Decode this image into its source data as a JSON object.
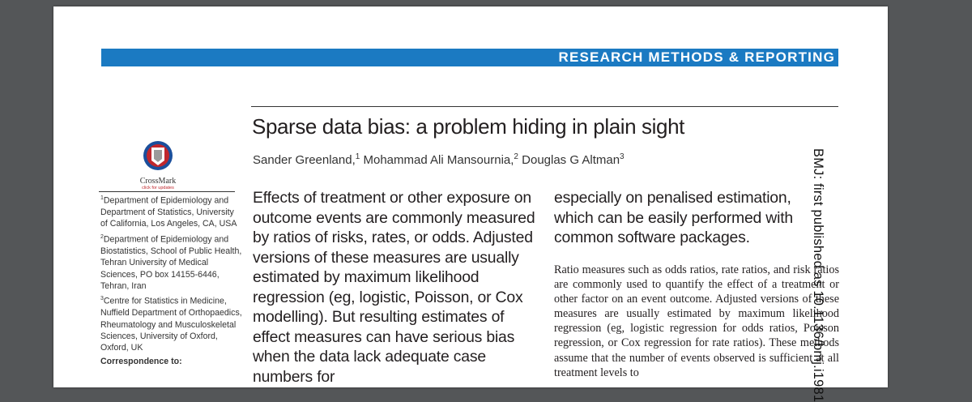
{
  "section_banner": "RESEARCH METHODS & REPORTING",
  "title": "Sparse data bias: a problem hiding in plain sight",
  "authors": [
    {
      "name": "Sander Greenland,",
      "sup": "1"
    },
    {
      "name": " Mohammad Ali Mansournia,",
      "sup": "2"
    },
    {
      "name": " Douglas G Altman",
      "sup": "3"
    }
  ],
  "crossmark": {
    "label": "CrossMark",
    "sub": "click for updates",
    "colors": {
      "red": "#c0272d",
      "blue": "#1b4f9c",
      "grey": "#9a9a9a"
    }
  },
  "affiliations": [
    {
      "sup": "1",
      "text": "Department of Epidemiology and Department of Statistics, University of California, Los Angeles, CA, USA"
    },
    {
      "sup": "2",
      "text": "Department of Epidemiology and Biostatistics, School of Public Health, Tehran University of Medical Sciences, PO box 14155-6446, Tehran, Iran"
    },
    {
      "sup": "3",
      "text": "Centre for Statistics in Medicine, Nuffield Department of Orthopaedics, Rheumatology and Musculoskeletal Sciences, University of Oxford, Oxford, UK"
    }
  ],
  "correspondence": "Correspondence to:",
  "abstract_left": "Effects of treatment or other exposure on outcome events are commonly measured by ratios of risks, rates, or odds. Adjusted versions of these measures are usually estimated by maximum likelihood regression (eg, logistic, Poisson, or Cox modelling). But resulting estimates of effect measures can have serious bias when the data lack adequate case numbers for",
  "abstract_right": "especially on penalised estimation, which can be easily performed with common software packages.",
  "body_text": "Ratio measures such as odds ratios, rate ratios, and risk ratios are commonly used to quantify the effect of a treatment or other factor on an event outcome. Adjusted versions of these measures are usually estimated by maximum likelihood regression (eg, logistic regression for odds ratios, Poisson regression, or Cox regression for rate ratios). These methods assume that the number of events observed is sufficient at all treatment levels to",
  "side_note": "BMJ: first published as 10.1136/bmj.i1981",
  "colors": {
    "banner": "#1b7ac2",
    "background": "#545658"
  }
}
